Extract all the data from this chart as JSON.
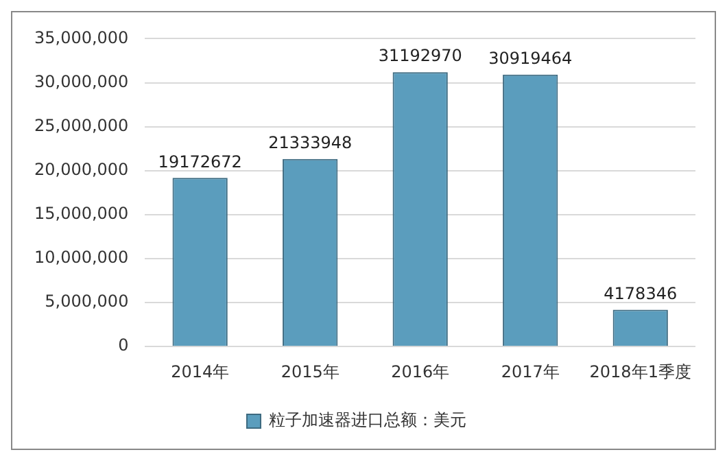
{
  "chart_data": {
    "type": "bar",
    "categories": [
      "2014年",
      "2015年",
      "2016年",
      "2017年",
      "2018年1季度"
    ],
    "series": [
      {
        "name": "粒子加速器进口总额：美元",
        "color": "#5b9dbd",
        "values": [
          19172672,
          21333948,
          31192970,
          30919464,
          4178346
        ]
      }
    ],
    "ylim": [
      0,
      35000000
    ],
    "yticks": [
      0,
      {
        "value": 5000000,
        "label": "5,000,000"
      },
      {
        "value": 10000000,
        "label": "10,000,000"
      },
      {
        "value": 15000000,
        "label": "15,000,000"
      },
      {
        "value": 20000000,
        "label": "20,000,000"
      },
      {
        "value": 25000000,
        "label": "25,000,000"
      },
      {
        "value": 30000000,
        "label": "30,000,000"
      },
      {
        "value": 35000000,
        "label": "35,000,000"
      }
    ],
    "grid": "y",
    "legend": "bottom",
    "data_labels": true
  }
}
